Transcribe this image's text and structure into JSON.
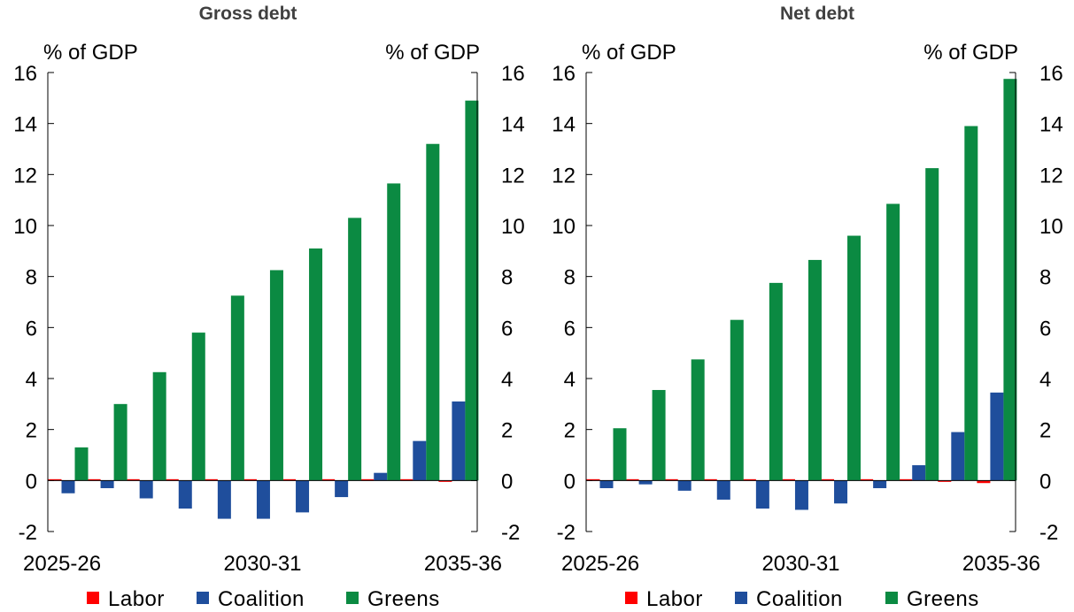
{
  "chart_data": [
    {
      "type": "bar",
      "title": "Gross debt",
      "ylabel_left": "% of GDP",
      "ylabel_right": "% of GDP",
      "ylim": [
        -2,
        16
      ],
      "yticks": [
        "-2",
        "0",
        "2",
        "4",
        "6",
        "8",
        "10",
        "12",
        "14",
        "16"
      ],
      "categories": [
        "2025-26",
        "2026-27",
        "2027-28",
        "2028-29",
        "2029-30",
        "2030-31",
        "2031-32",
        "2032-33",
        "2033-34",
        "2034-35",
        "2035-36"
      ],
      "category_labels_shown": [
        "2025-26",
        "2030-31",
        "2035-36"
      ],
      "series": [
        {
          "name": "Labor",
          "color": "#ff0000",
          "values": [
            0.0,
            0.0,
            0.05,
            0.05,
            0.05,
            0.05,
            0.05,
            0.05,
            0.05,
            0.0,
            -0.05
          ]
        },
        {
          "name": "Coalition",
          "color": "#1f4e9c",
          "values": [
            -0.5,
            -0.3,
            -0.7,
            -1.1,
            -1.5,
            -1.5,
            -1.25,
            -0.65,
            0.3,
            1.55,
            3.1
          ]
        },
        {
          "name": "Greens",
          "color": "#0b8a42",
          "values": [
            1.3,
            3.0,
            4.25,
            5.8,
            7.25,
            8.25,
            9.1,
            10.3,
            11.65,
            13.2,
            14.9
          ]
        }
      ]
    },
    {
      "type": "bar",
      "title": "Net debt",
      "ylabel_left": "% of GDP",
      "ylabel_right": "% of GDP",
      "ylim": [
        -2,
        16
      ],
      "yticks": [
        "-2",
        "0",
        "2",
        "4",
        "6",
        "8",
        "10",
        "12",
        "14",
        "16"
      ],
      "categories": [
        "2025-26",
        "2026-27",
        "2027-28",
        "2028-29",
        "2029-30",
        "2030-31",
        "2031-32",
        "2032-33",
        "2033-34",
        "2034-35",
        "2035-36"
      ],
      "category_labels_shown": [
        "2025-26",
        "2030-31",
        "2035-36"
      ],
      "series": [
        {
          "name": "Labor",
          "color": "#ff0000",
          "values": [
            0.0,
            0.0,
            0.0,
            0.0,
            0.0,
            0.0,
            0.0,
            0.0,
            0.0,
            -0.05,
            -0.1
          ]
        },
        {
          "name": "Coalition",
          "color": "#1f4e9c",
          "values": [
            -0.3,
            -0.15,
            -0.4,
            -0.75,
            -1.1,
            -1.15,
            -0.9,
            -0.3,
            0.6,
            1.9,
            3.45
          ]
        },
        {
          "name": "Greens",
          "color": "#0b8a42",
          "values": [
            2.05,
            3.55,
            4.75,
            6.3,
            7.75,
            8.65,
            9.6,
            10.85,
            12.25,
            13.9,
            15.75
          ]
        }
      ]
    }
  ]
}
